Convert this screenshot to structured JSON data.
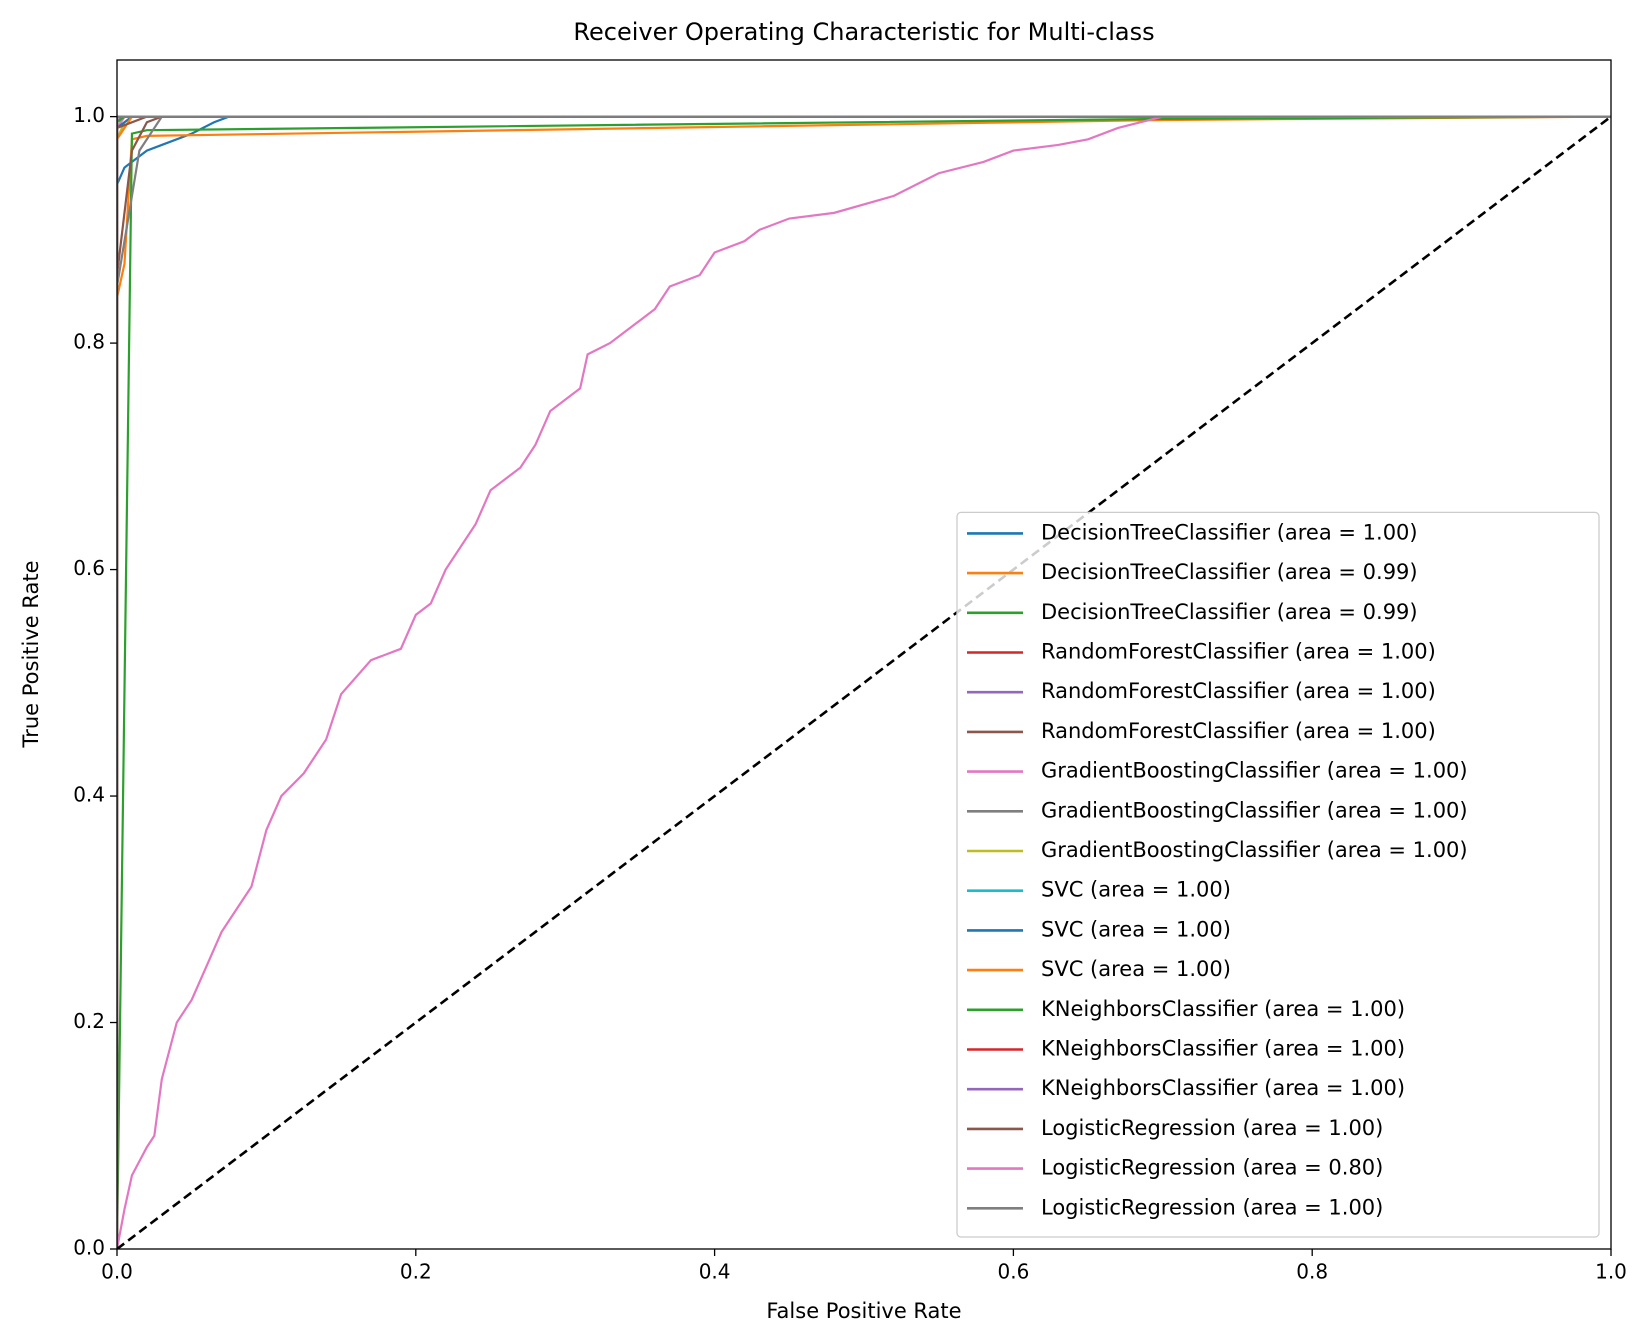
{
  "chart_data": {
    "type": "line",
    "title": "Receiver Operating Characteristic for Multi-class",
    "x_label": "False Positive Rate",
    "y_label": "True Positive Rate",
    "xlim": [
      0,
      1
    ],
    "ylim": [
      0,
      1.05
    ],
    "xticks": [
      {
        "value": 0,
        "label": "0.0"
      },
      {
        "value": 0.2,
        "label": "0.2"
      },
      {
        "value": 0.4,
        "label": "0.4"
      },
      {
        "value": 0.6,
        "label": "0.6"
      },
      {
        "value": 0.8,
        "label": "0.8"
      },
      {
        "value": 1,
        "label": "1.0"
      }
    ],
    "yticks": [
      {
        "value": 0,
        "label": "0.0"
      },
      {
        "value": 0.2,
        "label": "0.2"
      },
      {
        "value": 0.4,
        "label": "0.4"
      },
      {
        "value": 0.6,
        "label": "0.6"
      },
      {
        "value": 0.8,
        "label": "0.8"
      },
      {
        "value": 1,
        "label": "1.0"
      }
    ],
    "legend": "lower right",
    "diagonal": {
      "x": [
        0,
        1
      ],
      "values": [
        0,
        1
      ],
      "color": "#000000",
      "dashed": true
    },
    "series": [
      {
        "name": "DecisionTreeClassifier (area = 1.00)",
        "color": "#1f77b4",
        "x": [
          0,
          0,
          0.005,
          0.01,
          0.02,
          0.03,
          0.05,
          0.065,
          0.075,
          1
        ],
        "values": [
          0,
          0.94,
          0.955,
          0.96,
          0.97,
          0.975,
          0.985,
          0.995,
          1,
          1
        ]
      },
      {
        "name": "DecisionTreeClassifier (area = 0.99)",
        "color": "#ff7f0e",
        "x": [
          0,
          0,
          0.005,
          0.01,
          0.02,
          0.7,
          1
        ],
        "values": [
          0,
          0.84,
          0.87,
          0.98,
          0.983,
          0.997,
          1
        ]
      },
      {
        "name": "DecisionTreeClassifier (area = 0.99)",
        "color": "#2ca02c",
        "x": [
          0,
          0.01,
          0.02,
          0.7,
          1
        ],
        "values": [
          0,
          0.985,
          0.988,
          0.998,
          1
        ]
      },
      {
        "name": "RandomForestClassifier (area = 1.00)",
        "color": "#d62728",
        "x": [
          0,
          0,
          0.005,
          1
        ],
        "values": [
          0,
          0.99,
          1,
          1
        ]
      },
      {
        "name": "RandomForestClassifier (area = 1.00)",
        "color": "#9467bd",
        "x": [
          0,
          0,
          0.003,
          1
        ],
        "values": [
          0,
          0.995,
          1,
          1
        ]
      },
      {
        "name": "RandomForestClassifier (area = 1.00)",
        "color": "#8c564b",
        "x": [
          0,
          0,
          0.01,
          0.02,
          0.03,
          1
        ],
        "values": [
          0,
          0.86,
          0.97,
          0.995,
          1,
          1
        ]
      },
      {
        "name": "GradientBoostingClassifier (area = 1.00)",
        "color": "#e377c2",
        "x": [
          0,
          0,
          0.005,
          1
        ],
        "values": [
          0,
          0.99,
          1,
          1
        ]
      },
      {
        "name": "GradientBoostingClassifier (area = 1.00)",
        "color": "#7f7f7f",
        "x": [
          0,
          0,
          0.01,
          0.015,
          0.025,
          0.03,
          1
        ],
        "values": [
          0,
          0.85,
          0.93,
          0.97,
          0.99,
          1,
          1
        ]
      },
      {
        "name": "GradientBoostingClassifier (area = 1.00)",
        "color": "#bcbd22",
        "x": [
          0,
          0,
          0.005,
          0.01,
          1
        ],
        "values": [
          0,
          0.98,
          0.995,
          1,
          1
        ]
      },
      {
        "name": "SVC (area = 1.00)",
        "color": "#17becf",
        "x": [
          0,
          0,
          1
        ],
        "values": [
          0,
          1,
          1
        ]
      },
      {
        "name": "SVC (area = 1.00)",
        "color": "#1f77b4",
        "x": [
          0,
          0,
          0.01,
          1
        ],
        "values": [
          0,
          0.99,
          1,
          1
        ]
      },
      {
        "name": "SVC (area = 1.00)",
        "color": "#ff7f0e",
        "x": [
          0,
          0,
          0.01,
          1
        ],
        "values": [
          0,
          0.98,
          1,
          1
        ]
      },
      {
        "name": "KNeighborsClassifier (area = 1.00)",
        "color": "#2ca02c",
        "x": [
          0,
          0,
          0.005,
          1
        ],
        "values": [
          0,
          0.995,
          1,
          1
        ]
      },
      {
        "name": "KNeighborsClassifier (area = 1.00)",
        "color": "#d62728",
        "x": [
          0,
          0,
          1
        ],
        "values": [
          0,
          1,
          1
        ]
      },
      {
        "name": "KNeighborsClassifier (area = 1.00)",
        "color": "#9467bd",
        "x": [
          0,
          0,
          1
        ],
        "values": [
          0,
          1,
          1
        ]
      },
      {
        "name": "LogisticRegression (area = 1.00)",
        "color": "#8c564b",
        "x": [
          0,
          0,
          0.02,
          1
        ],
        "values": [
          0,
          0.99,
          1,
          1
        ]
      },
      {
        "name": "LogisticRegression (area = 0.80)",
        "color": "#e377c2",
        "x": [
          0,
          0.005,
          0.01,
          0.02,
          0.025,
          0.03,
          0.04,
          0.05,
          0.06,
          0.07,
          0.08,
          0.09,
          0.1,
          0.11,
          0.125,
          0.14,
          0.15,
          0.17,
          0.19,
          0.2,
          0.21,
          0.22,
          0.24,
          0.25,
          0.27,
          0.28,
          0.29,
          0.31,
          0.315,
          0.33,
          0.35,
          0.36,
          0.37,
          0.39,
          0.4,
          0.42,
          0.43,
          0.45,
          0.48,
          0.52,
          0.55,
          0.58,
          0.6,
          0.63,
          0.65,
          0.67,
          0.7,
          1
        ],
        "values": [
          0,
          0.035,
          0.065,
          0.09,
          0.1,
          0.15,
          0.2,
          0.22,
          0.25,
          0.28,
          0.3,
          0.32,
          0.37,
          0.4,
          0.42,
          0.45,
          0.49,
          0.52,
          0.53,
          0.56,
          0.57,
          0.6,
          0.64,
          0.67,
          0.69,
          0.71,
          0.74,
          0.76,
          0.79,
          0.8,
          0.82,
          0.83,
          0.85,
          0.86,
          0.88,
          0.89,
          0.9,
          0.91,
          0.915,
          0.93,
          0.95,
          0.96,
          0.97,
          0.975,
          0.98,
          0.99,
          1,
          1
        ]
      },
      {
        "name": "LogisticRegression (area = 1.00)",
        "color": "#7f7f7f",
        "x": [
          0,
          0,
          1
        ],
        "values": [
          0,
          1,
          1
        ]
      }
    ]
  }
}
